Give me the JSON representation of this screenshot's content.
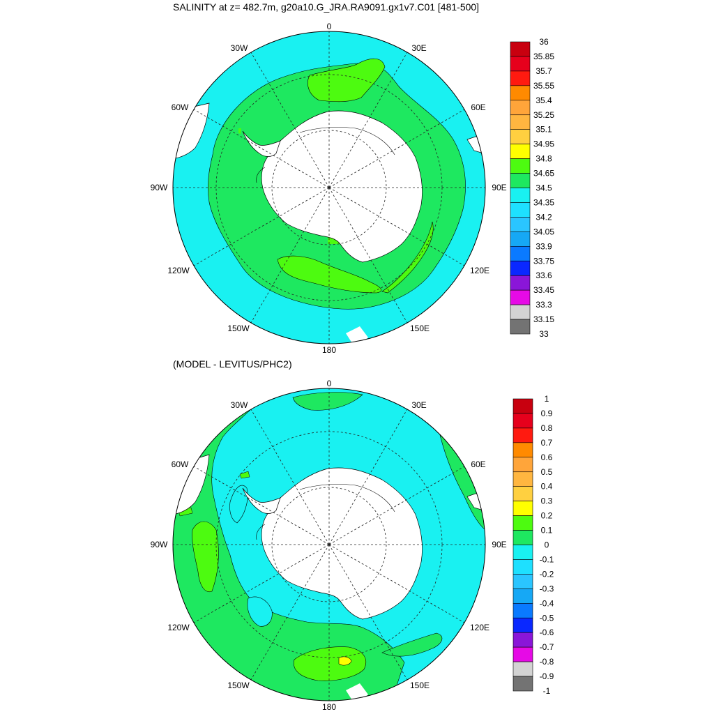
{
  "titles": {
    "top": "SALINITY at z= 482.7m, g20a10.G_JRA.RA9091.gx1v7.C01 [481-500]",
    "bottom": "(MODEL - LEVITUS/PHC2)"
  },
  "longitude_labels": [
    "0",
    "30E",
    "60E",
    "90E",
    "120E",
    "150E",
    "180",
    "150W",
    "120W",
    "90W",
    "60W",
    "30W"
  ],
  "colors": {
    "land": "#ffffff",
    "ocean_cyan": "#19f1f1",
    "ocean_green": "#1ee860",
    "ocean_lime": "#4dfb10",
    "ocean_yellow": "#f9ea2b",
    "border": "#000000"
  },
  "chart_data": [
    {
      "type": "map",
      "projection": "south-polar-stereographic",
      "variable": "SALINITY",
      "depth": "482.7m",
      "case": "g20a10.G_JRA.RA9091.gx1v7.C01",
      "years": "481-500",
      "colorbar": {
        "labels": [
          "36",
          "35.85",
          "35.7",
          "35.55",
          "35.4",
          "35.25",
          "35.1",
          "34.95",
          "34.8",
          "34.65",
          "34.5",
          "34.35",
          "34.2",
          "34.05",
          "33.9",
          "33.75",
          "33.6",
          "33.45",
          "33.3",
          "33.15",
          "33"
        ],
        "colors": [
          "#c8000f",
          "#e6001c",
          "#ff1a10",
          "#ff8a00",
          "#ffa53a",
          "#ffb640",
          "#ffd040",
          "#ffff00",
          "#4dfb10",
          "#1ee860",
          "#19f1f1",
          "#1ee0ff",
          "#2ac5ff",
          "#16a8f5",
          "#0a7aff",
          "#0a28ff",
          "#8a16d8",
          "#e60ae6",
          "#d3d3d3",
          "#737373"
        ]
      }
    },
    {
      "type": "map",
      "projection": "south-polar-stereographic",
      "variable": "MODEL - LEVITUS/PHC2",
      "colorbar": {
        "labels": [
          "1",
          "0.9",
          "0.8",
          "0.7",
          "0.6",
          "0.5",
          "0.4",
          "0.3",
          "0.2",
          "0.1",
          "0",
          "-0.1",
          "-0.2",
          "-0.3",
          "-0.4",
          "-0.5",
          "-0.6",
          "-0.7",
          "-0.8",
          "-0.9",
          "-1"
        ],
        "colors": [
          "#c8000f",
          "#e6001c",
          "#ff1a10",
          "#ff8a00",
          "#ffa53a",
          "#ffb640",
          "#ffd040",
          "#ffff00",
          "#4dfb10",
          "#1ee860",
          "#19f1f1",
          "#1ee0ff",
          "#2ac5ff",
          "#16a8f5",
          "#0a7aff",
          "#0a28ff",
          "#8a16d8",
          "#e60ae6",
          "#d3d3d3",
          "#737373"
        ]
      }
    }
  ]
}
